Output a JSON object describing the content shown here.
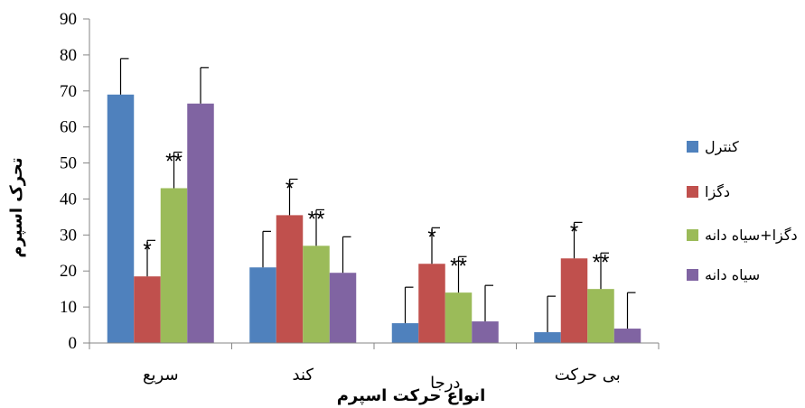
{
  "chart_data": {
    "type": "bar",
    "title": "",
    "xlabel": "انواع حرکت اسپرم",
    "ylabel": "تحرک اسپرم",
    "ylim": [
      0,
      90
    ],
    "yticks": [
      0,
      10,
      20,
      30,
      40,
      50,
      60,
      70,
      80,
      90
    ],
    "categories": [
      "سریع",
      "کند",
      "درجا",
      "بی حرکت"
    ],
    "legend_position": "right",
    "grid": false,
    "series": [
      {
        "name": "کنترل",
        "color": "#4f81bd",
        "values": [
          69,
          21,
          5.5,
          3
        ],
        "errors": [
          10,
          10,
          10,
          10
        ],
        "annotations": [
          "",
          "",
          "",
          ""
        ]
      },
      {
        "name": "دگزا",
        "color": "#c0504d",
        "values": [
          18.5,
          35.5,
          22,
          23.5
        ],
        "errors": [
          10,
          10,
          10,
          10
        ],
        "annotations": [
          "*",
          "*",
          "*",
          "*"
        ]
      },
      {
        "name": "دگزا+سیاه دانه",
        "color": "#9bbb59",
        "values": [
          43,
          27,
          14,
          15
        ],
        "errors": [
          10,
          10,
          10,
          10
        ],
        "annotations": [
          "**",
          "**",
          "**",
          "**"
        ]
      },
      {
        "name": "سیاه دانه",
        "color": "#8064a2",
        "values": [
          66.5,
          19.5,
          6,
          4
        ],
        "errors": [
          10,
          10,
          10,
          10
        ],
        "annotations": [
          "",
          "",
          "",
          ""
        ]
      }
    ]
  }
}
